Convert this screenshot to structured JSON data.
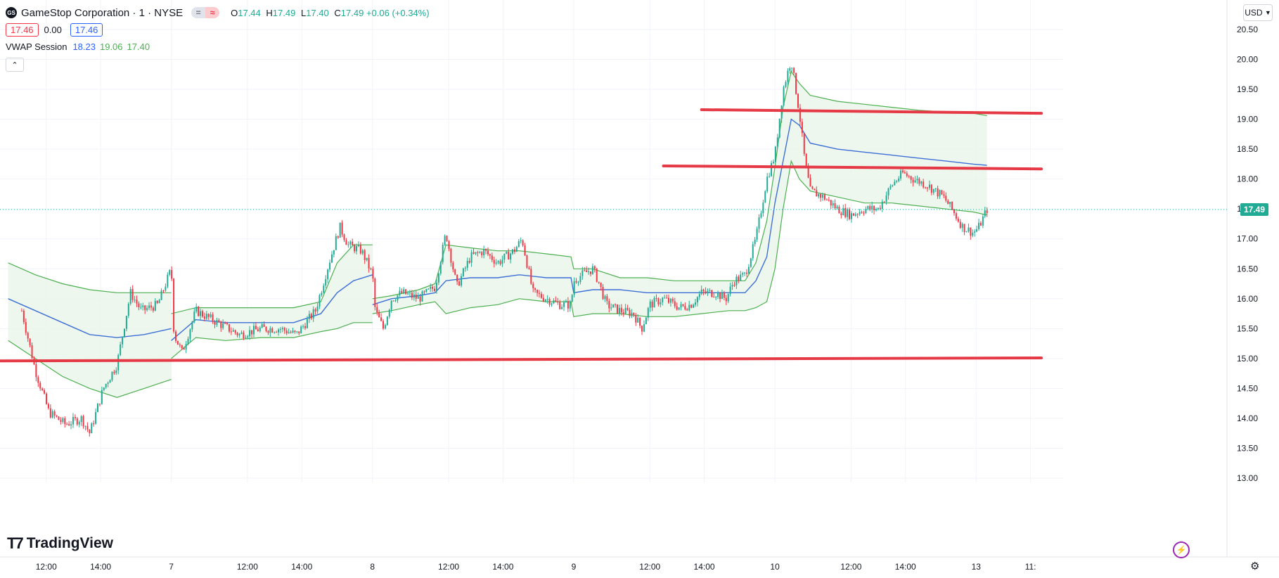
{
  "header": {
    "logo_text": "GS",
    "symbol_title": "GameStop Corporation · 1 · NYSE",
    "pill_left": "=",
    "pill_right": "≈",
    "ohlc": {
      "o_label": "O",
      "o": "17.44",
      "h_label": "H",
      "h": "17.49",
      "l_label": "L",
      "l": "17.40",
      "c_label": "C",
      "c": "17.49",
      "change": "+0.06 (+0.34%)"
    },
    "bid": "17.46",
    "spread": "0.00",
    "ask": "17.46"
  },
  "indicator": {
    "name": "VWAP Session",
    "vwap": "18.23",
    "upper": "19.06",
    "lower": "17.40",
    "collapse_icon": "chevron-up-icon"
  },
  "toolbar": {
    "currency": "USD",
    "settings_icon": "gear-icon",
    "alert_icon": "bolt-icon"
  },
  "branding": {
    "name": "TradingView"
  },
  "colors": {
    "up": "#22ab94",
    "down": "#f23645",
    "vwap": "#3d6fd6",
    "band": "#4caf50",
    "band_fill": "#e8f5e9",
    "hline": "#e53945",
    "last": "#22ab94"
  },
  "chart_data": {
    "type": "candlestick",
    "title": "GameStop Corporation · 1 · NYSE",
    "interval": "1 minute",
    "ylim": [
      13.0,
      20.5
    ],
    "y_ticks": [
      "20.50",
      "20.00",
      "19.50",
      "19.00",
      "18.50",
      "18.00",
      "17.50",
      "17.00",
      "16.50",
      "16.00",
      "15.50",
      "15.00",
      "14.50",
      "14.00",
      "13.50",
      "13.00"
    ],
    "x_ticks": [
      "12:00",
      "14:00",
      "7",
      "12:00",
      "14:00",
      "8",
      "12:00",
      "14:00",
      "9",
      "12:00",
      "14:00",
      "10",
      "12:00",
      "14:00",
      "13",
      "11:"
    ],
    "x_tick_pos": [
      0.9,
      2.9,
      5.5,
      8.3,
      10.3,
      12.9,
      15.7,
      17.7,
      20.3,
      23.1,
      25.1,
      27.7,
      30.5,
      32.5,
      35.1,
      37.1
    ],
    "xlim": [
      -0.8,
      38.3
    ],
    "grid": true,
    "last_price": "17.49",
    "price_path": [
      [
        0,
        15.8
      ],
      [
        0.5,
        14.8
      ],
      [
        1.0,
        14.1
      ],
      [
        1.6,
        13.9
      ],
      [
        2.2,
        14.0
      ],
      [
        2.5,
        13.75
      ],
      [
        3.0,
        14.5
      ],
      [
        3.5,
        14.9
      ],
      [
        4.0,
        16.1
      ],
      [
        4.4,
        15.8
      ],
      [
        5.0,
        15.9
      ],
      [
        5.5,
        16.5
      ],
      [
        5.6,
        15.4
      ],
      [
        5.9,
        15.1
      ],
      [
        6.4,
        15.8
      ],
      [
        7.2,
        15.6
      ],
      [
        8.0,
        15.4
      ],
      [
        8.8,
        15.5
      ],
      [
        9.5,
        15.5
      ],
      [
        10.1,
        15.4
      ],
      [
        10.8,
        15.8
      ],
      [
        11.3,
        16.6
      ],
      [
        11.7,
        17.2
      ],
      [
        12.0,
        16.9
      ],
      [
        12.5,
        16.8
      ],
      [
        12.9,
        16.4
      ],
      [
        13.0,
        15.8
      ],
      [
        13.3,
        15.5
      ],
      [
        13.6,
        16.0
      ],
      [
        14.0,
        16.1
      ],
      [
        14.6,
        16.0
      ],
      [
        15.2,
        16.2
      ],
      [
        15.6,
        17.1
      ],
      [
        16.0,
        16.2
      ],
      [
        16.5,
        16.7
      ],
      [
        17.0,
        16.8
      ],
      [
        17.5,
        16.6
      ],
      [
        18.1,
        16.8
      ],
      [
        18.4,
        17.0
      ],
      [
        18.8,
        16.1
      ],
      [
        19.3,
        16.0
      ],
      [
        19.8,
        15.9
      ],
      [
        20.2,
        15.9
      ],
      [
        20.3,
        16.3
      ],
      [
        20.6,
        16.4
      ],
      [
        21.0,
        16.5
      ],
      [
        21.2,
        16.3
      ],
      [
        21.5,
        15.9
      ],
      [
        22.0,
        15.8
      ],
      [
        22.5,
        15.75
      ],
      [
        22.8,
        15.5
      ],
      [
        23.1,
        15.9
      ],
      [
        23.6,
        16.0
      ],
      [
        24.2,
        15.85
      ],
      [
        24.6,
        15.9
      ],
      [
        25.0,
        16.1
      ],
      [
        25.5,
        16.1
      ],
      [
        25.9,
        16.0
      ],
      [
        26.2,
        16.3
      ],
      [
        26.6,
        16.4
      ],
      [
        27.0,
        17.0
      ],
      [
        27.4,
        18.0
      ],
      [
        27.7,
        18.4
      ],
      [
        28.0,
        19.5
      ],
      [
        28.3,
        20.0
      ],
      [
        28.6,
        19.1
      ],
      [
        28.8,
        18.3
      ],
      [
        29.0,
        17.8
      ],
      [
        29.5,
        17.7
      ],
      [
        30.0,
        17.5
      ],
      [
        30.5,
        17.4
      ],
      [
        31.0,
        17.5
      ],
      [
        31.5,
        17.5
      ],
      [
        32.0,
        17.9
      ],
      [
        32.4,
        18.1
      ],
      [
        32.8,
        18.0
      ],
      [
        33.3,
        17.9
      ],
      [
        33.6,
        17.8
      ],
      [
        33.9,
        17.7
      ],
      [
        34.2,
        17.5
      ],
      [
        34.6,
        17.2
      ],
      [
        35.0,
        17.1
      ],
      [
        35.2,
        17.2
      ],
      [
        35.5,
        17.49
      ]
    ],
    "series": [
      {
        "name": "VWAP",
        "values": [
          [
            -0.5,
            16.0
          ],
          [
            0.5,
            15.8
          ],
          [
            1.5,
            15.6
          ],
          [
            2.5,
            15.4
          ],
          [
            3.5,
            15.35
          ],
          [
            4.5,
            15.4
          ],
          [
            5.5,
            15.5
          ],
          [
            5.5,
            15.3
          ],
          [
            6.4,
            15.65
          ],
          [
            7.5,
            15.6
          ],
          [
            8.8,
            15.6
          ],
          [
            10.0,
            15.6
          ],
          [
            11.0,
            15.75
          ],
          [
            11.6,
            16.1
          ],
          [
            12.2,
            16.3
          ],
          [
            12.9,
            16.4
          ],
          [
            12.9,
            15.9
          ],
          [
            13.6,
            16.0
          ],
          [
            14.6,
            16.05
          ],
          [
            15.2,
            16.1
          ],
          [
            15.6,
            16.3
          ],
          [
            16.5,
            16.35
          ],
          [
            17.5,
            16.35
          ],
          [
            18.3,
            16.4
          ],
          [
            19.3,
            16.35
          ],
          [
            20.2,
            16.35
          ],
          [
            20.3,
            16.1
          ],
          [
            21.0,
            16.15
          ],
          [
            22.0,
            16.15
          ],
          [
            23.0,
            16.1
          ],
          [
            24.0,
            16.1
          ],
          [
            25.0,
            16.1
          ],
          [
            26.0,
            16.1
          ],
          [
            26.6,
            16.1
          ],
          [
            27.0,
            16.3
          ],
          [
            27.4,
            16.7
          ],
          [
            27.7,
            17.6
          ],
          [
            28.0,
            18.3
          ],
          [
            28.3,
            19.0
          ],
          [
            28.6,
            18.9
          ],
          [
            29.0,
            18.6
          ],
          [
            30.0,
            18.5
          ],
          [
            31.0,
            18.45
          ],
          [
            32.0,
            18.4
          ],
          [
            33.0,
            18.35
          ],
          [
            34.0,
            18.3
          ],
          [
            35.0,
            18.25
          ],
          [
            35.5,
            18.23
          ]
        ]
      },
      {
        "name": "Upper",
        "values": [
          [
            -0.5,
            16.6
          ],
          [
            0.5,
            16.4
          ],
          [
            1.5,
            16.25
          ],
          [
            2.5,
            16.15
          ],
          [
            3.5,
            16.1
          ],
          [
            4.0,
            16.1
          ],
          [
            4.5,
            16.1
          ],
          [
            5.5,
            16.1
          ],
          [
            5.5,
            15.75
          ],
          [
            6.4,
            15.85
          ],
          [
            7.5,
            15.85
          ],
          [
            8.8,
            15.85
          ],
          [
            10.0,
            15.85
          ],
          [
            11.0,
            15.95
          ],
          [
            11.6,
            16.6
          ],
          [
            12.2,
            16.9
          ],
          [
            12.9,
            16.9
          ],
          [
            12.9,
            16.0
          ],
          [
            13.6,
            16.05
          ],
          [
            14.6,
            16.15
          ],
          [
            15.2,
            16.25
          ],
          [
            15.6,
            16.9
          ],
          [
            16.5,
            16.85
          ],
          [
            17.5,
            16.8
          ],
          [
            18.3,
            16.8
          ],
          [
            19.3,
            16.75
          ],
          [
            20.2,
            16.7
          ],
          [
            20.3,
            16.5
          ],
          [
            21.0,
            16.5
          ],
          [
            22.0,
            16.35
          ],
          [
            23.0,
            16.35
          ],
          [
            24.0,
            16.3
          ],
          [
            25.0,
            16.3
          ],
          [
            26.0,
            16.3
          ],
          [
            26.6,
            16.3
          ],
          [
            27.0,
            16.6
          ],
          [
            27.4,
            17.3
          ],
          [
            27.7,
            18.2
          ],
          [
            28.0,
            19.2
          ],
          [
            28.3,
            19.8
          ],
          [
            28.6,
            19.6
          ],
          [
            29.0,
            19.4
          ],
          [
            30.0,
            19.3
          ],
          [
            31.0,
            19.25
          ],
          [
            32.0,
            19.2
          ],
          [
            33.0,
            19.15
          ],
          [
            34.0,
            19.12
          ],
          [
            35.0,
            19.1
          ],
          [
            35.5,
            19.06
          ]
        ]
      },
      {
        "name": "Lower",
        "values": [
          [
            -0.5,
            15.3
          ],
          [
            0.5,
            15.0
          ],
          [
            1.5,
            14.7
          ],
          [
            2.5,
            14.5
          ],
          [
            3.5,
            14.35
          ],
          [
            4.5,
            14.5
          ],
          [
            5.5,
            14.65
          ],
          [
            5.5,
            15.0
          ],
          [
            6.4,
            15.35
          ],
          [
            7.5,
            15.3
          ],
          [
            8.8,
            15.35
          ],
          [
            10.0,
            15.35
          ],
          [
            11.0,
            15.45
          ],
          [
            11.6,
            15.5
          ],
          [
            12.2,
            15.6
          ],
          [
            12.9,
            15.6
          ],
          [
            12.9,
            15.75
          ],
          [
            13.6,
            15.8
          ],
          [
            14.6,
            15.9
          ],
          [
            15.2,
            15.95
          ],
          [
            15.6,
            15.75
          ],
          [
            16.5,
            15.85
          ],
          [
            17.5,
            15.9
          ],
          [
            18.3,
            16.0
          ],
          [
            19.3,
            15.95
          ],
          [
            20.2,
            15.95
          ],
          [
            20.3,
            15.7
          ],
          [
            21.0,
            15.75
          ],
          [
            22.0,
            15.75
          ],
          [
            23.0,
            15.7
          ],
          [
            24.0,
            15.7
          ],
          [
            25.0,
            15.75
          ],
          [
            26.0,
            15.8
          ],
          [
            26.6,
            15.8
          ],
          [
            27.0,
            15.85
          ],
          [
            27.4,
            15.95
          ],
          [
            27.7,
            16.5
          ],
          [
            28.0,
            17.5
          ],
          [
            28.3,
            18.3
          ],
          [
            28.6,
            18.0
          ],
          [
            29.0,
            17.8
          ],
          [
            30.0,
            17.7
          ],
          [
            31.0,
            17.6
          ],
          [
            32.0,
            17.6
          ],
          [
            33.0,
            17.55
          ],
          [
            34.0,
            17.5
          ],
          [
            35.0,
            17.45
          ],
          [
            35.5,
            17.4
          ]
        ]
      }
    ],
    "drawn_lines": [
      {
        "x1": -0.8,
        "y1": 14.96,
        "x2": 37.5,
        "y2": 15.01
      },
      {
        "x1": 23.6,
        "y1": 18.22,
        "x2": 37.5,
        "y2": 18.17
      },
      {
        "x1": 25.0,
        "y1": 19.16,
        "x2": 37.5,
        "y2": 19.1
      }
    ]
  }
}
